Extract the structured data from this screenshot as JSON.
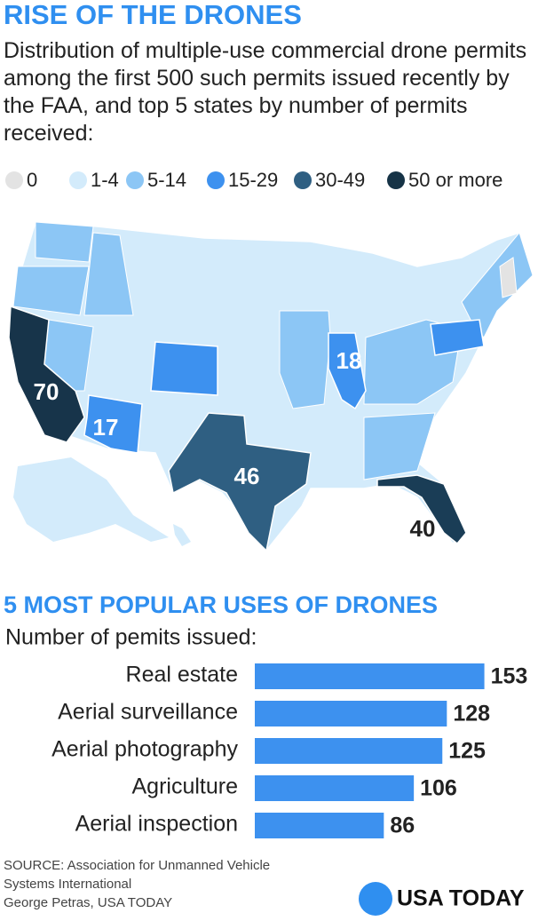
{
  "header": {
    "title": "RISE OF THE DRONES",
    "subtitle": "Distribution of multiple-use commercial drone permits among the first 500 such permits issued recently by the FAA, and top 5 states by number of permits received:"
  },
  "map": {
    "legend": [
      {
        "label": "0",
        "color": "#e3e3e3"
      },
      {
        "label": "1-4",
        "color": "#d3ebfb"
      },
      {
        "label": "5-14",
        "color": "#8cc6f5"
      },
      {
        "label": "15-29",
        "color": "#3d91ef"
      },
      {
        "label": "30-49",
        "color": "#2f5f82"
      },
      {
        "label": "50 or more",
        "color": "#163346"
      }
    ],
    "state_labels": [
      70,
      17,
      18,
      46,
      40
    ]
  },
  "chart_data": {
    "type": "bar",
    "orientation": "horizontal",
    "title": "5 MOST POPULAR USES OF DRONES",
    "subtitle": "Number of pemits issued:",
    "categories": [
      "Real estate",
      "Aerial surveillance",
      "Aerial photography",
      "Agriculture",
      "Aerial inspection"
    ],
    "values": [
      153,
      128,
      125,
      106,
      86
    ],
    "color": "#3d91ef"
  },
  "footer": {
    "source": "SOURCE: Association for Unmanned Vehicle Systems International",
    "credit": "George Petras, USA TODAY",
    "logo": "USA TODAY"
  }
}
